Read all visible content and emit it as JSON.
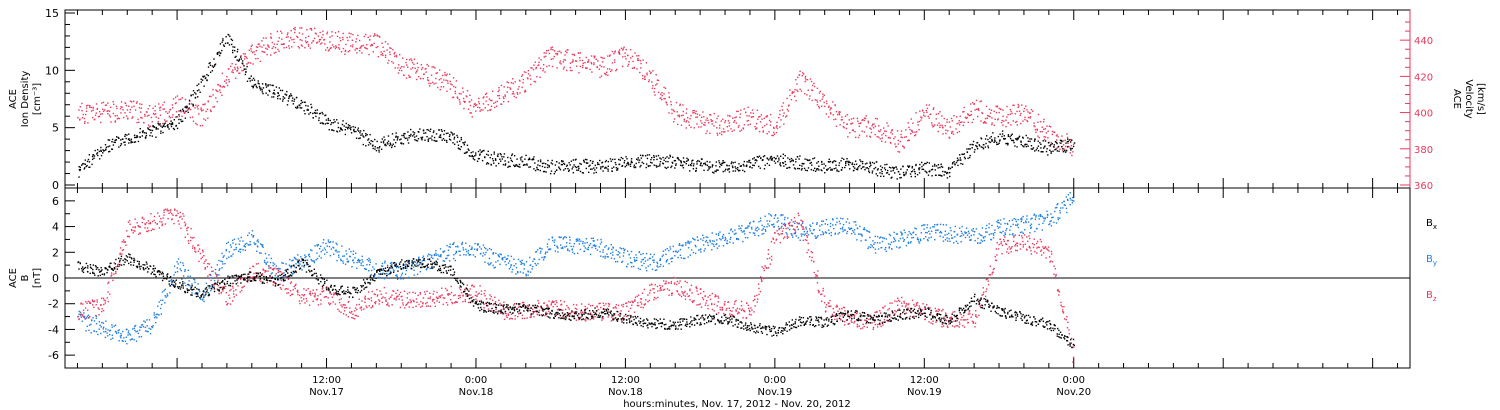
{
  "colors": {
    "black": "#000000",
    "pink": "#e83a5e",
    "blue": "#1f7fe0"
  },
  "xaxis": {
    "title": "hours:minutes, Nov. 17, 2012 - Nov. 20, 2012",
    "range_hours": [
      -9,
      99
    ],
    "ticks": [
      {
        "t": 12,
        "time": "12:00",
        "date": "Nov.17"
      },
      {
        "t": 24,
        "time": "0:00",
        "date": "Nov.18"
      },
      {
        "t": 36,
        "time": "12:00",
        "date": "Nov.18"
      },
      {
        "t": 48,
        "time": "0:00",
        "date": "Nov.19"
      },
      {
        "t": 60,
        "time": "12:00",
        "date": "Nov.19"
      },
      {
        "t": 72,
        "time": "0:00",
        "date": "Nov.20"
      }
    ]
  },
  "chart_data": [
    {
      "type": "scatter",
      "ylabel_left": [
        "ACE",
        "Ion Density",
        "[cm⁻³]"
      ],
      "ylabel_right": [
        "ACE",
        "Velocity",
        "[km/s]"
      ],
      "ylim_left": [
        0,
        15
      ],
      "ylim_right": [
        360,
        455
      ],
      "left_ticks": [
        0,
        5,
        10,
        15
      ],
      "right_ticks": [
        360,
        380,
        400,
        420,
        440
      ],
      "series": [
        {
          "axis": "left",
          "color": "black",
          "t": [
            -8,
            -6,
            -4,
            -2,
            0,
            2,
            4,
            6,
            8,
            10,
            12,
            14,
            16,
            18,
            20,
            22,
            24,
            26,
            28,
            30,
            32,
            34,
            36,
            38,
            40,
            42,
            44,
            46,
            48,
            50,
            52,
            54,
            56,
            58,
            60,
            62,
            64,
            66,
            68,
            70,
            72
          ],
          "v": [
            1.2,
            3.2,
            4.2,
            4.7,
            5.5,
            9,
            13,
            9,
            8,
            7,
            5.5,
            4.8,
            3.5,
            4.2,
            4.5,
            4.2,
            2.6,
            2.2,
            2.1,
            1.6,
            1.7,
            1.7,
            2,
            2.2,
            2,
            1.8,
            1.6,
            1.9,
            2.2,
            2,
            1.7,
            1.9,
            1.5,
            1.1,
            1.5,
            1.2,
            3.5,
            4.2,
            3.8,
            3.2,
            3.6
          ]
        },
        {
          "axis": "right",
          "color": "pink",
          "t": [
            -8,
            -6,
            -4,
            -2,
            0,
            2,
            4,
            6,
            8,
            10,
            12,
            14,
            16,
            18,
            20,
            22,
            24,
            26,
            28,
            30,
            32,
            34,
            36,
            38,
            40,
            42,
            44,
            46,
            48,
            50,
            52,
            54,
            56,
            58,
            60,
            62,
            64,
            66,
            68,
            70,
            72
          ],
          "v": [
            400,
            400,
            402,
            398,
            404,
            398,
            420,
            432,
            440,
            442,
            440,
            438,
            438,
            426,
            422,
            415,
            402,
            410,
            418,
            432,
            428,
            425,
            432,
            420,
            400,
            395,
            393,
            398,
            392,
            418,
            405,
            392,
            393,
            384,
            400,
            392,
            402,
            398,
            400,
            388,
            382
          ]
        }
      ]
    },
    {
      "type": "scatter",
      "ylabel_left": [
        "ACE",
        "B",
        "[nT]"
      ],
      "ylim": [
        -7,
        7
      ],
      "ticks": [
        -6,
        -4,
        -2,
        0,
        2,
        4,
        6
      ],
      "legend": [
        {
          "label": "B",
          "sub": "x",
          "color": "black"
        },
        {
          "label": "B",
          "sub": "y",
          "color": "blue"
        },
        {
          "label": "B",
          "sub": "z",
          "color": "pink"
        }
      ],
      "series": [
        {
          "color": "black",
          "t": [
            -8,
            -6,
            -4,
            -2,
            0,
            2,
            4,
            6,
            8,
            10,
            12,
            14,
            16,
            18,
            20,
            22,
            24,
            26,
            28,
            30,
            32,
            34,
            36,
            38,
            40,
            42,
            44,
            46,
            48,
            50,
            52,
            54,
            56,
            58,
            60,
            62,
            64,
            66,
            68,
            70,
            72
          ],
          "v": [
            1,
            0.5,
            1.6,
            0.7,
            -0.5,
            -1.2,
            -0.2,
            0.2,
            -0.2,
            1.2,
            -0.6,
            -1.1,
            0.3,
            1.1,
            1.3,
            0.6,
            -2.1,
            -2.4,
            -2.3,
            -2.7,
            -2.9,
            -2.6,
            -3.1,
            -3.5,
            -3.6,
            -3.2,
            -3.1,
            -3.8,
            -4.1,
            -3.3,
            -3.4,
            -2.8,
            -3.2,
            -2.8,
            -2.6,
            -3.3,
            -1.6,
            -2.5,
            -3.1,
            -3.6,
            -5.2
          ]
        },
        {
          "color": "blue",
          "t": [
            -8,
            -6,
            -4,
            -2,
            0,
            2,
            4,
            6,
            8,
            10,
            12,
            14,
            16,
            18,
            20,
            22,
            24,
            26,
            28,
            30,
            32,
            34,
            36,
            38,
            40,
            42,
            44,
            46,
            48,
            50,
            52,
            54,
            56,
            58,
            60,
            62,
            64,
            66,
            68,
            70,
            72
          ],
          "v": [
            -3.2,
            -3.8,
            -4.5,
            -3.6,
            1,
            -1.5,
            2.2,
            3.1,
            0.4,
            1.4,
            2.5,
            1.5,
            0.7,
            0.6,
            1.2,
            2.1,
            2.2,
            1.2,
            0.8,
            2.6,
            2.6,
            2.4,
            1.6,
            1.2,
            2,
            2.7,
            3.1,
            3.7,
            4.6,
            3.6,
            3.9,
            4.1,
            2.6,
            3,
            3.6,
            3.5,
            3.2,
            3.9,
            4.2,
            4.6,
            6.3
          ]
        },
        {
          "color": "pink",
          "t": [
            -8,
            -6,
            -4,
            -2,
            0,
            2,
            4,
            6,
            8,
            10,
            12,
            14,
            16,
            18,
            20,
            22,
            24,
            26,
            28,
            30,
            32,
            34,
            36,
            38,
            40,
            42,
            44,
            46,
            48,
            50,
            52,
            54,
            56,
            58,
            60,
            62,
            64,
            66,
            68,
            70,
            72
          ],
          "v": [
            -2.6,
            -2.2,
            3.9,
            4.4,
            5,
            1.5,
            -1.5,
            0.6,
            0.1,
            -1.5,
            -1.3,
            -2.6,
            -1.3,
            -1.6,
            -1.6,
            -1.3,
            -1.1,
            -2.5,
            -2.5,
            -2.2,
            -2.6,
            -2.6,
            -2.6,
            -1.1,
            -0.5,
            -1.5,
            -2.2,
            -2.6,
            3.1,
            4.6,
            -2.2,
            -3.1,
            -3.3,
            -2.1,
            -2.6,
            -3.3,
            -3.1,
            2.6,
            2.8,
            2.2,
            -6.1
          ]
        }
      ]
    }
  ]
}
